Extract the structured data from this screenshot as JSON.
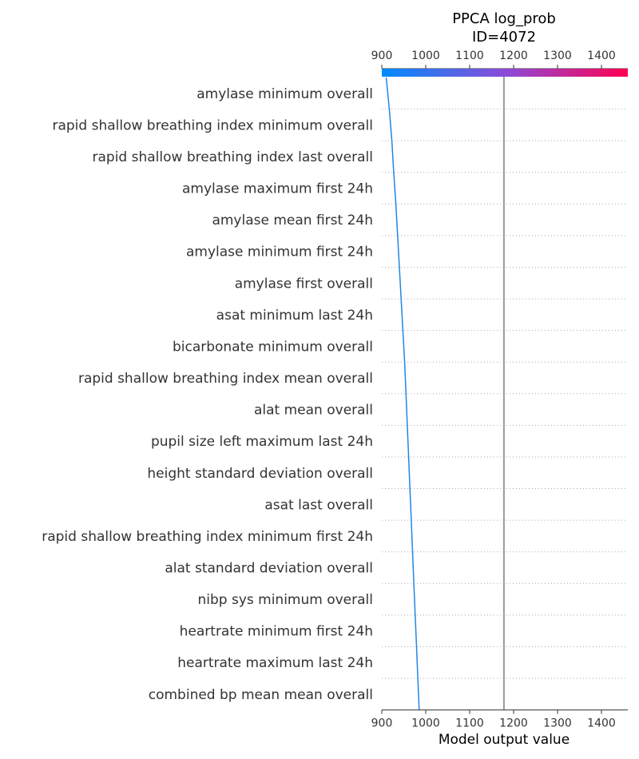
{
  "chart_data": {
    "type": "line",
    "title": "PPCA log_prob",
    "subtitle": "ID=4072",
    "xlabel": "Model output value",
    "xlim": [
      900,
      1460
    ],
    "xticks": [
      900,
      1000,
      1100,
      1200,
      1300,
      1400
    ],
    "base_value": 910,
    "expected_value": 1178,
    "features": [
      "amylase  minimum  overall",
      "rapid shallow breathing index  minimum  overall",
      "rapid shallow breathing index  last  overall",
      "amylase  maximum  first 24h",
      "amylase  mean  first 24h",
      "amylase  minimum  first 24h",
      "amylase  first  overall",
      "asat  minimum  last 24h",
      "bicarbonate  minimum  overall",
      "rapid shallow breathing index  mean  overall",
      "alat  mean  overall",
      "pupil size left  maximum  last 24h",
      "height  standard deviation  overall",
      "asat  last  overall",
      "rapid shallow breathing index  minimum  first 24h",
      "alat  standard deviation  overall",
      "nibp sys  minimum  overall",
      "heartrate  minimum  first 24h",
      "heartrate  maximum  last 24h",
      "combined bp mean  mean  overall"
    ],
    "path_values": [
      910,
      917,
      923,
      927,
      932,
      936,
      940,
      944,
      948,
      952,
      955,
      958,
      961,
      964,
      967,
      970,
      973,
      976,
      979,
      982,
      985
    ],
    "colors": {
      "line": "#1e88e5",
      "expected_line": "#999999",
      "gridline": "#aaaaaa",
      "colorbar_low": "#008bfb",
      "colorbar_mid": "#8a4bd8",
      "colorbar_high": "#ff0052",
      "text": "#333333"
    }
  }
}
